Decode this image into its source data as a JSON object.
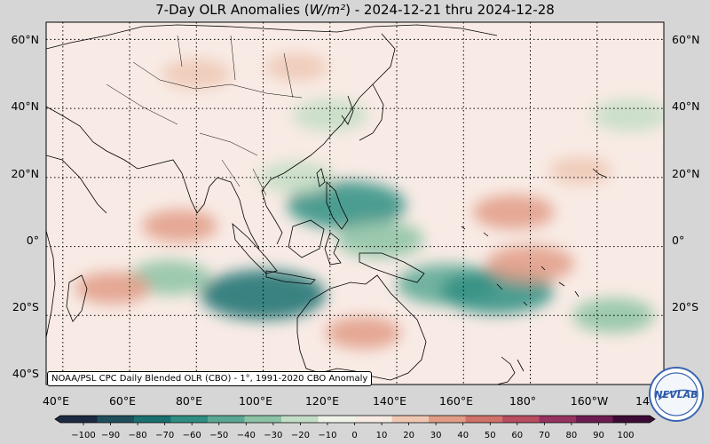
{
  "title": {
    "prefix": "7-Day OLR Anomalies (",
    "unit": "W/m²",
    "suffix": ") - 2024-12-21 thru 2024-12-28"
  },
  "lat_labels": [
    "60°N",
    "40°N",
    "20°N",
    "0°",
    "20°S",
    "40°S"
  ],
  "lon_labels": [
    "40°E",
    "60°E",
    "80°E",
    "100°E",
    "120°E",
    "140°E",
    "160°E",
    "180°",
    "160°W",
    "14"
  ],
  "source_note": "NOAA/PSL CPC Daily Blended OLR (CBO) - 1°, 1991-2020 CBO Anomaly",
  "colorbar": {
    "ticks": [
      "−100",
      "−90",
      "−80",
      "−70",
      "−60",
      "−50",
      "−40",
      "−30",
      "−20",
      "−10",
      "0",
      "10",
      "20",
      "30",
      "40",
      "50",
      "60",
      "70",
      "80",
      "90",
      "100"
    ],
    "colors": [
      "#1b2a40",
      "#1f4f5c",
      "#1a7070",
      "#2f8f82",
      "#5aa894",
      "#8cc3a6",
      "#c3ddc6",
      "#eef3ea",
      "#f7ebe4",
      "#efc8b4",
      "#e29c86",
      "#d0726a",
      "#b84e60",
      "#963260",
      "#6c1c52",
      "#3c0b36"
    ]
  },
  "logo": {
    "text": "NEVLAB",
    "colors": {
      "ring": "#3a66b0",
      "text": "#2a58a8",
      "face": "#f3f6fb"
    }
  },
  "chart_data": {
    "type": "heatmap",
    "title": "7-Day OLR Anomalies (W/m²) - 2024-12-21 thru 2024-12-28",
    "units": "W/m²",
    "lon_range": [
      35,
      220
    ],
    "lat_range": [
      -40,
      65
    ],
    "color_range": [
      -100,
      100
    ],
    "grid": true,
    "anomaly_regions": [
      {
        "lon": 125,
        "lat": 12,
        "value": -60
      },
      {
        "lon": 110,
        "lat": 20,
        "value": -25
      },
      {
        "lon": 135,
        "lat": 2,
        "value": -35
      },
      {
        "lon": 100,
        "lat": -14,
        "value": -65
      },
      {
        "lon": 72,
        "lat": -9,
        "value": -30
      },
      {
        "lon": 155,
        "lat": -11,
        "value": -45
      },
      {
        "lon": 170,
        "lat": -13,
        "value": -55
      },
      {
        "lon": 120,
        "lat": 38,
        "value": -25
      },
      {
        "lon": 210,
        "lat": 38,
        "value": -25
      },
      {
        "lon": 205,
        "lat": -20,
        "value": -30
      },
      {
        "lon": 75,
        "lat": 6,
        "value": 25
      },
      {
        "lon": 175,
        "lat": 10,
        "value": 30
      },
      {
        "lon": 180,
        "lat": -5,
        "value": 35
      },
      {
        "lon": 130,
        "lat": -25,
        "value": 25
      },
      {
        "lon": 195,
        "lat": 22,
        "value": 15
      },
      {
        "lon": 55,
        "lat": -12,
        "value": 25
      },
      {
        "lon": 80,
        "lat": 50,
        "value": 20
      },
      {
        "lon": 110,
        "lat": 52,
        "value": 15
      }
    ]
  }
}
